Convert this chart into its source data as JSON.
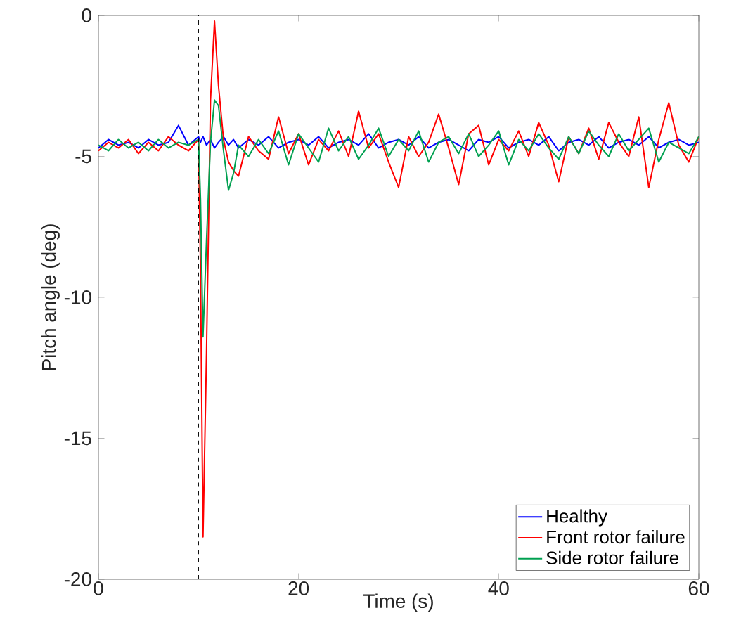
{
  "chart_data": {
    "type": "line",
    "xlabel": "Time (s)",
    "ylabel": "Pitch angle (deg)",
    "x": [
      0,
      1,
      2,
      3,
      4,
      5,
      6,
      7,
      8,
      9,
      10,
      10.2,
      10.45,
      10.8,
      11.2,
      11.6,
      12,
      12.5,
      13,
      13.5,
      14,
      15,
      16,
      17,
      18,
      19,
      20,
      21,
      22,
      23,
      24,
      25,
      26,
      27,
      28,
      29,
      30,
      31,
      32,
      33,
      34,
      35,
      36,
      37,
      38,
      39,
      40,
      41,
      42,
      43,
      44,
      45,
      46,
      47,
      48,
      49,
      50,
      51,
      52,
      53,
      54,
      55,
      56,
      57,
      58,
      59,
      60
    ],
    "series": [
      {
        "name": "Healthy",
        "color": "#0000ff",
        "values": [
          -4.7,
          -4.4,
          -4.6,
          -4.5,
          -4.7,
          -4.4,
          -4.6,
          -4.5,
          -3.9,
          -4.6,
          -4.3,
          -4.5,
          -4.3,
          -4.6,
          -4.4,
          -4.7,
          -4.5,
          -4.3,
          -4.6,
          -4.4,
          -4.7,
          -4.4,
          -4.6,
          -4.3,
          -4.7,
          -4.5,
          -4.4,
          -4.6,
          -4.3,
          -4.7,
          -4.5,
          -4.4,
          -4.6,
          -4.2,
          -4.7,
          -4.5,
          -4.4,
          -4.6,
          -4.3,
          -4.7,
          -4.5,
          -4.4,
          -4.6,
          -4.8,
          -4.4,
          -4.5,
          -4.3,
          -4.7,
          -4.5,
          -4.4,
          -4.6,
          -4.3,
          -4.8,
          -4.5,
          -4.4,
          -4.6,
          -4.3,
          -4.7,
          -4.5,
          -4.4,
          -4.6,
          -4.3,
          -4.7,
          -4.5,
          -4.4,
          -4.6,
          -4.5
        ]
      },
      {
        "name": "Front rotor failure",
        "color": "#ff0000",
        "values": [
          -4.8,
          -4.5,
          -4.7,
          -4.4,
          -4.9,
          -4.5,
          -4.8,
          -4.3,
          -4.6,
          -4.8,
          -4.4,
          -9,
          -18.5,
          -12,
          -3,
          -0.2,
          -2.5,
          -4.4,
          -5.2,
          -5.5,
          -5.7,
          -4.3,
          -4.8,
          -5.1,
          -3.6,
          -4.9,
          -4.2,
          -5.3,
          -4.4,
          -4.8,
          -4.1,
          -5.0,
          -3.4,
          -4.7,
          -4.2,
          -5.2,
          -6.1,
          -4.3,
          -5.0,
          -4.5,
          -3.5,
          -4.7,
          -6.0,
          -4.2,
          -3.9,
          -5.3,
          -4.4,
          -4.8,
          -4.1,
          -5.0,
          -3.8,
          -4.6,
          -5.9,
          -4.3,
          -4.9,
          -4.0,
          -5.1,
          -3.8,
          -4.5,
          -5.0,
          -3.6,
          -6.1,
          -4.4,
          -3.1,
          -4.6,
          -5.2,
          -4.3
        ]
      },
      {
        "name": "Side rotor failure",
        "color": "#00a050",
        "values": [
          -4.6,
          -4.8,
          -4.4,
          -4.7,
          -4.5,
          -4.8,
          -4.4,
          -4.7,
          -4.5,
          -4.6,
          -4.4,
          -6.5,
          -11.4,
          -8,
          -4.5,
          -3.0,
          -3.2,
          -4.8,
          -6.2,
          -5.6,
          -4.6,
          -5.0,
          -4.4,
          -4.9,
          -4.1,
          -5.3,
          -4.2,
          -4.7,
          -5.2,
          -4.0,
          -4.8,
          -4.3,
          -5.1,
          -4.6,
          -4.0,
          -5.0,
          -4.4,
          -4.8,
          -4.1,
          -5.2,
          -4.5,
          -4.3,
          -4.9,
          -4.2,
          -5.0,
          -4.6,
          -4.1,
          -5.3,
          -4.4,
          -4.8,
          -4.2,
          -4.7,
          -5.1,
          -4.3,
          -4.9,
          -4.1,
          -4.6,
          -5.0,
          -4.2,
          -4.8,
          -4.4,
          -4.0,
          -5.2,
          -4.5,
          -4.7,
          -4.9,
          -4.3
        ]
      }
    ],
    "xlim": [
      0,
      60
    ],
    "ylim": [
      -20,
      0
    ],
    "xticks": [
      0,
      20,
      40,
      60
    ],
    "yticks": [
      -20,
      -15,
      -10,
      -5,
      0
    ],
    "ref_lines": [
      {
        "axis": "x",
        "value": 10,
        "color": "#000000",
        "line_style": "dashed"
      }
    ],
    "legend": "bottom right",
    "grid": false,
    "line_style": "solid",
    "marker": "none"
  }
}
